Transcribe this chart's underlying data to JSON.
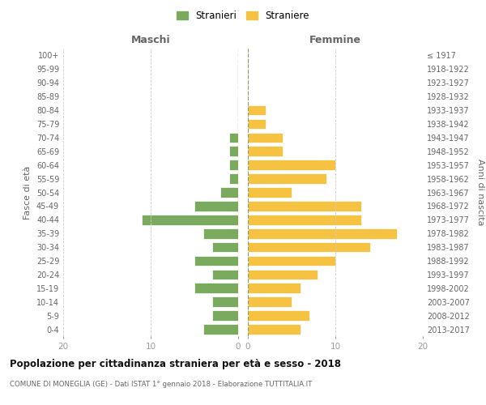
{
  "age_groups": [
    "0-4",
    "5-9",
    "10-14",
    "15-19",
    "20-24",
    "25-29",
    "30-34",
    "35-39",
    "40-44",
    "45-49",
    "50-54",
    "55-59",
    "60-64",
    "65-69",
    "70-74",
    "75-79",
    "80-84",
    "85-89",
    "90-94",
    "95-99",
    "100+"
  ],
  "birth_years": [
    "2013-2017",
    "2008-2012",
    "2003-2007",
    "1998-2002",
    "1993-1997",
    "1988-1992",
    "1983-1987",
    "1978-1982",
    "1973-1977",
    "1968-1972",
    "1963-1967",
    "1958-1962",
    "1953-1957",
    "1948-1952",
    "1943-1947",
    "1938-1942",
    "1933-1937",
    "1928-1932",
    "1923-1927",
    "1918-1922",
    "≤ 1917"
  ],
  "maschi": [
    4,
    3,
    3,
    5,
    3,
    5,
    3,
    4,
    11,
    5,
    2,
    1,
    1,
    1,
    1,
    0,
    0,
    0,
    0,
    0,
    0
  ],
  "femmine": [
    6,
    7,
    5,
    6,
    8,
    10,
    14,
    17,
    13,
    13,
    5,
    9,
    10,
    4,
    4,
    2,
    2,
    0,
    0,
    0,
    0
  ],
  "color_maschi": "#7aaa5e",
  "color_femmine": "#f5c242",
  "title": "Popolazione per cittadinanza straniera per età e sesso - 2018",
  "subtitle": "COMUNE DI MONEGLIA (GE) - Dati ISTAT 1° gennaio 2018 - Elaborazione TUTTITALIA.IT",
  "legend_maschi": "Stranieri",
  "legend_femmine": "Straniere",
  "label_maschi": "Maschi",
  "label_femmine": "Femmine",
  "ylabel_left": "Fasce di età",
  "ylabel_right": "Anni di nascita",
  "xlim": 20,
  "xticks": [
    0,
    10,
    20
  ],
  "background_color": "#ffffff",
  "grid_color": "#cccccc",
  "bar_edge_color": "#ffffff",
  "center_line_color": "#999966",
  "tick_color": "#999999",
  "label_color": "#666666",
  "title_color": "#111111",
  "subtitle_color": "#666666"
}
